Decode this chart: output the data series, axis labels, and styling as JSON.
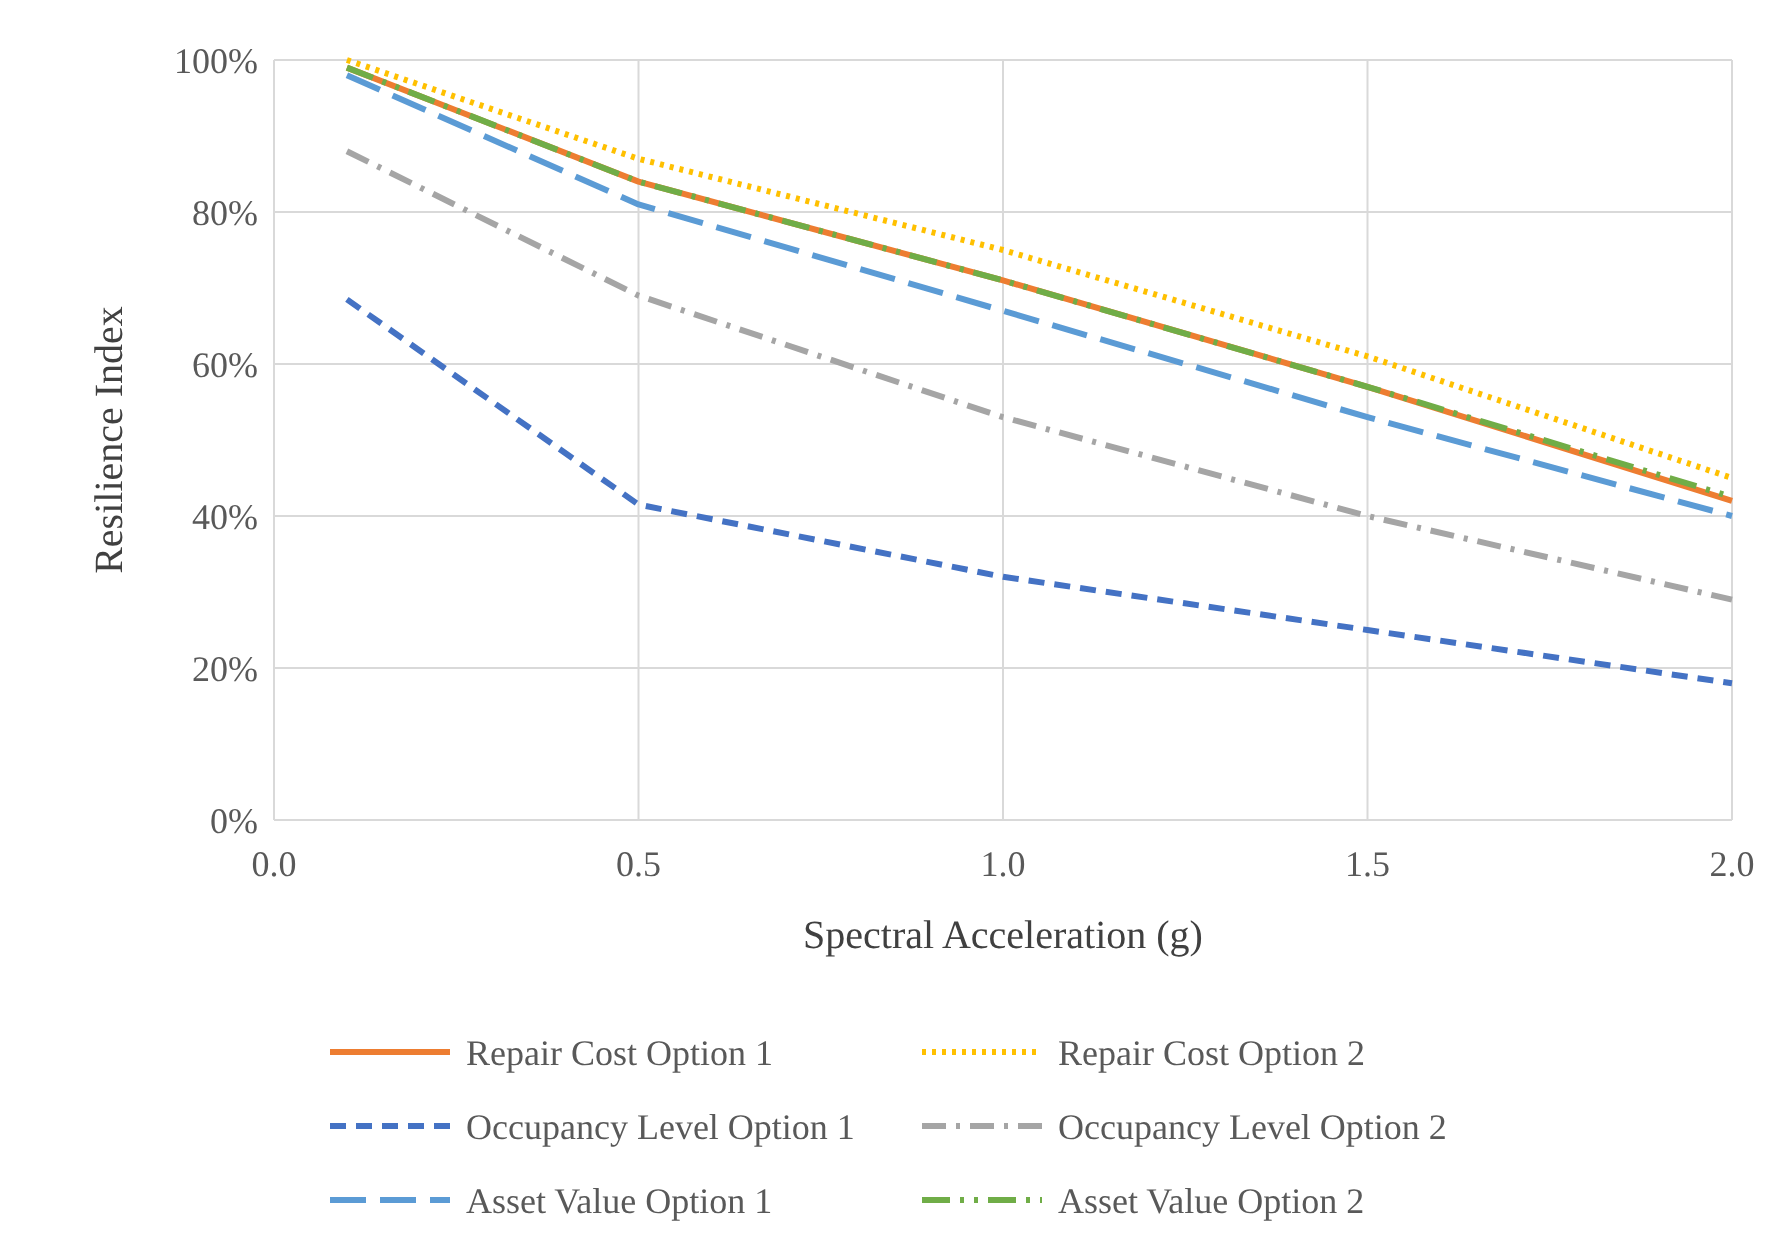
{
  "chart_data": {
    "type": "line",
    "xlabel": "Spectral Acceleration (g)",
    "ylabel": "Resilience Index",
    "xlim": [
      0,
      2
    ],
    "xticks": [
      {
        "value": 0,
        "label": "0.0"
      },
      {
        "value": 0.5,
        "label": "0.5"
      },
      {
        "value": 1,
        "label": "1.0"
      },
      {
        "value": 1.5,
        "label": "1.5"
      },
      {
        "value": 2,
        "label": "2.0"
      }
    ],
    "ylim": [
      0,
      100
    ],
    "yticks": [
      {
        "value": 0,
        "label": "0%"
      },
      {
        "value": 20,
        "label": "20%"
      },
      {
        "value": 40,
        "label": "40%"
      },
      {
        "value": 60,
        "label": "60%"
      },
      {
        "value": 80,
        "label": "80%"
      },
      {
        "value": 100,
        "label": "100%"
      }
    ],
    "grid": true,
    "legend": "bottom",
    "marker": "none",
    "x": [
      0.1,
      0.5,
      1.0,
      1.5,
      2.0
    ],
    "series": [
      {
        "name": "Repair Cost Option 1",
        "color": "#ed7d31",
        "line_style": "solid",
        "values": [
          99,
          84,
          71,
          57,
          42
        ]
      },
      {
        "name": "Repair Cost Option 2",
        "color": "#ffc000",
        "line_style": "dotted",
        "values": [
          100,
          87,
          75,
          61,
          45
        ]
      },
      {
        "name": "Occupancy Level Option 1",
        "color": "#4472c4",
        "line_style": "dashed",
        "values": [
          68.5,
          41.5,
          32,
          25,
          18
        ]
      },
      {
        "name": "Occupancy Level Option 2",
        "color": "#a5a5a5",
        "line_style": "dashdot",
        "values": [
          88,
          69,
          53,
          40,
          29
        ]
      },
      {
        "name": "Asset Value Option 1",
        "color": "#5b9bd5",
        "line_style": "longdash",
        "values": [
          98,
          81,
          67,
          53,
          40
        ]
      },
      {
        "name": "Asset Value Option 2",
        "color": "#70ad47",
        "line_style": "dashdotdot",
        "values": [
          99,
          84,
          71,
          57,
          42.5
        ]
      }
    ]
  }
}
